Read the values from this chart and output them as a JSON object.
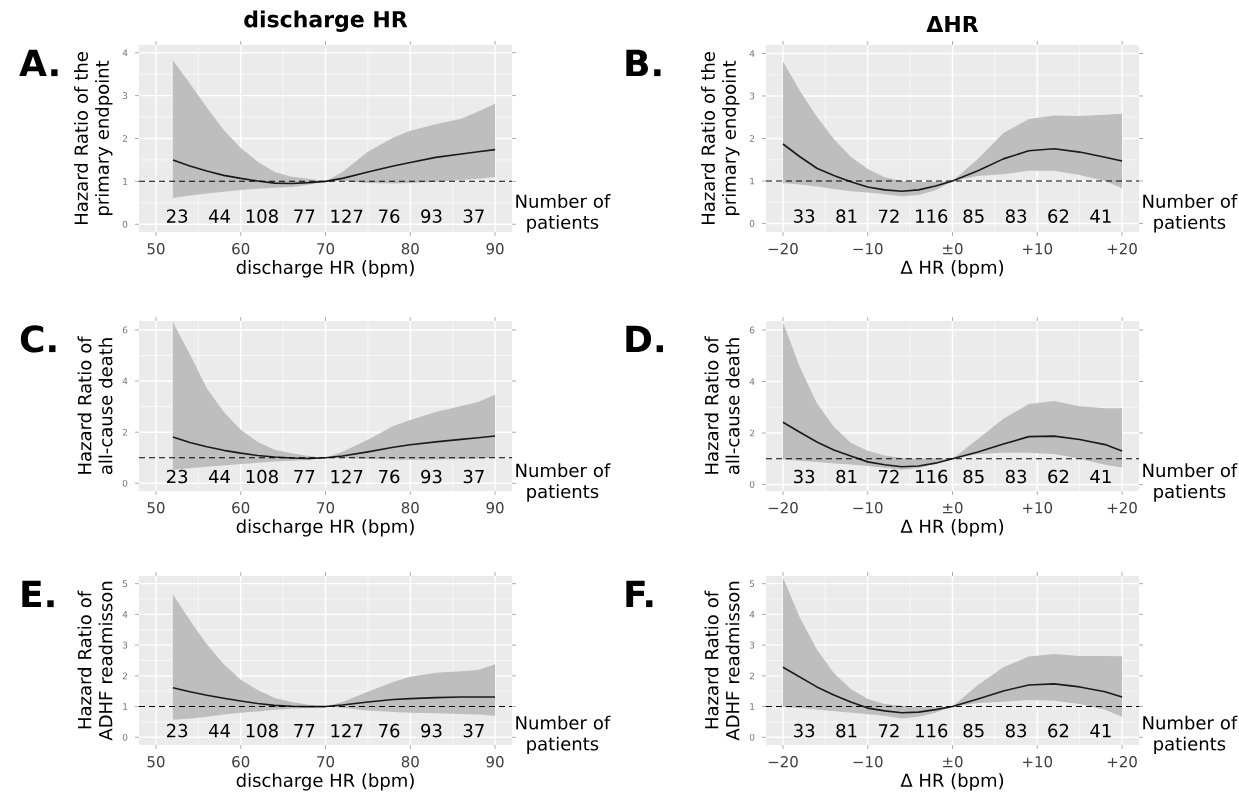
{
  "chart_data": [
    {
      "type": "line",
      "title": "discharge HR",
      "xlabel": "discharge HR (bpm)",
      "ylabel": "Hazard Ratio of the primary endpoint",
      "xlim": [
        48,
        92
      ],
      "ylim": [
        -0.18,
        4.18
      ],
      "xticks": [
        50,
        60,
        70,
        80,
        90
      ],
      "yticks": [
        0,
        1,
        2,
        3,
        4
      ],
      "grid": true,
      "marker": "none",
      "series": [
        {
          "color": "#1a1a1a",
          "x": [
            52,
            54,
            56,
            58,
            60,
            62,
            64,
            66,
            68,
            70,
            72,
            75,
            78,
            80,
            83,
            86,
            88,
            90
          ],
          "values": [
            1.5,
            1.36,
            1.24,
            1.14,
            1.07,
            1.01,
            0.96,
            0.95,
            0.97,
            1.0,
            1.07,
            1.22,
            1.36,
            1.44,
            1.56,
            1.64,
            1.69,
            1.74
          ],
          "upper": [
            3.82,
            3.28,
            2.72,
            2.2,
            1.78,
            1.46,
            1.22,
            1.11,
            1.06,
            1.0,
            1.22,
            1.69,
            2.02,
            2.18,
            2.33,
            2.46,
            2.63,
            2.81
          ],
          "lower": [
            0.61,
            0.67,
            0.72,
            0.76,
            0.8,
            0.83,
            0.85,
            0.87,
            0.92,
            1.0,
            1.01,
            0.96,
            0.95,
            0.96,
            0.99,
            1.03,
            1.06,
            1.1
          ]
        }
      ],
      "ref_lines": [
        {
          "axis": "y",
          "value": 1,
          "line_style": "dashed",
          "color": "#000000"
        }
      ],
      "annotations": [
        "A.",
        "Number of patients",
        "23",
        "44",
        "108",
        "77",
        "127",
        "76",
        "93",
        "37"
      ]
    },
    {
      "type": "line",
      "title": "ΔHR",
      "xlabel": "Δ HR (bpm)",
      "ylabel": "Hazard Ratio of the primary endpoint",
      "xlim": [
        -22,
        22
      ],
      "ylim": [
        -0.2,
        4.2
      ],
      "xticks": [
        {
          "value": -20,
          "label": "−20"
        },
        {
          "value": -10,
          "label": "−10"
        },
        {
          "value": 0,
          "label": "±0"
        },
        {
          "value": 10,
          "label": "+10"
        },
        {
          "value": 20,
          "label": "+20"
        }
      ],
      "yticks": [
        0,
        1,
        2,
        3,
        4
      ],
      "grid": true,
      "marker": "none",
      "series": [
        {
          "color": "#1a1a1a",
          "x": [
            -20,
            -18,
            -16,
            -14,
            -12,
            -10,
            -8,
            -6,
            -4,
            -2,
            0,
            3,
            6,
            9,
            12,
            15,
            18,
            20
          ],
          "values": [
            1.87,
            1.57,
            1.3,
            1.13,
            0.98,
            0.86,
            0.79,
            0.76,
            0.79,
            0.88,
            1.0,
            1.24,
            1.52,
            1.71,
            1.76,
            1.68,
            1.56,
            1.47
          ],
          "upper": [
            3.81,
            3.12,
            2.51,
            1.99,
            1.57,
            1.28,
            1.09,
            1.0,
            0.97,
            0.99,
            1.0,
            1.52,
            2.13,
            2.46,
            2.54,
            2.53,
            2.56,
            2.58
          ],
          "lower": [
            0.95,
            0.92,
            0.87,
            0.81,
            0.76,
            0.73,
            0.69,
            0.64,
            0.67,
            0.78,
            1.0,
            1.12,
            1.16,
            1.24,
            1.24,
            1.14,
            1.0,
            0.83
          ]
        }
      ],
      "ref_lines": [
        {
          "axis": "y",
          "value": 1,
          "line_style": "dashed",
          "color": "#000000"
        }
      ],
      "annotations": [
        "B.",
        "Number of patients",
        "33",
        "81",
        "72",
        "116",
        "85",
        "83",
        "62",
        "41"
      ]
    },
    {
      "type": "line",
      "xlabel": "discharge HR (bpm)",
      "ylabel": "Hazard Ratio of all-cause death",
      "xlim": [
        48,
        92
      ],
      "ylim": [
        -0.3,
        6.35
      ],
      "xticks": [
        50,
        60,
        70,
        80,
        90
      ],
      "yticks": [
        0,
        2,
        4,
        6
      ],
      "grid": true,
      "marker": "none",
      "series": [
        {
          "color": "#1a1a1a",
          "x": [
            52,
            54,
            56,
            58,
            60,
            62,
            64,
            66,
            68,
            70,
            72,
            75,
            78,
            80,
            83,
            86,
            88,
            90
          ],
          "values": [
            1.81,
            1.6,
            1.43,
            1.29,
            1.18,
            1.09,
            1.03,
            0.99,
            0.97,
            1.0,
            1.07,
            1.23,
            1.41,
            1.51,
            1.62,
            1.72,
            1.78,
            1.85
          ],
          "upper": [
            6.3,
            5.05,
            3.72,
            2.79,
            2.1,
            1.62,
            1.31,
            1.18,
            1.07,
            1.0,
            1.23,
            1.7,
            2.24,
            2.48,
            2.79,
            3.02,
            3.18,
            3.46
          ],
          "lower": [
            0.53,
            0.59,
            0.65,
            0.7,
            0.76,
            0.8,
            0.85,
            0.88,
            0.91,
            1.0,
            0.99,
            0.95,
            0.93,
            0.92,
            0.93,
            0.95,
            0.97,
            1.0
          ]
        }
      ],
      "ref_lines": [
        {
          "axis": "y",
          "value": 1,
          "line_style": "dashed",
          "color": "#000000"
        }
      ],
      "annotations": [
        "C.",
        "Number of patients",
        "23",
        "44",
        "108",
        "77",
        "127",
        "76",
        "93",
        "37"
      ]
    },
    {
      "type": "line",
      "xlabel": "Δ HR (bpm)",
      "ylabel": "Hazard Ratio of all-cause death",
      "xlim": [
        -22,
        22
      ],
      "ylim": [
        -0.25,
        6.35
      ],
      "xticks": [
        {
          "value": -20,
          "label": "−20"
        },
        {
          "value": -10,
          "label": "−10"
        },
        {
          "value": 0,
          "label": "±0"
        },
        {
          "value": 10,
          "label": "+10"
        },
        {
          "value": 20,
          "label": "+20"
        }
      ],
      "yticks": [
        0,
        2,
        4,
        6
      ],
      "grid": true,
      "marker": "none",
      "series": [
        {
          "color": "#1a1a1a",
          "x": [
            -20,
            -18,
            -16,
            -14,
            -12,
            -10,
            -8,
            -6,
            -4,
            -2,
            0,
            3,
            6,
            9,
            12,
            15,
            18,
            20
          ],
          "values": [
            2.42,
            2.03,
            1.65,
            1.34,
            1.11,
            0.88,
            0.77,
            0.69,
            0.72,
            0.83,
            1.0,
            1.26,
            1.57,
            1.86,
            1.88,
            1.75,
            1.55,
            1.3
          ],
          "upper": [
            6.3,
            4.55,
            3.16,
            2.24,
            1.62,
            1.31,
            1.13,
            1.03,
            1.0,
            1.02,
            1.0,
            1.77,
            2.55,
            3.13,
            3.24,
            3.04,
            2.96,
            2.96
          ],
          "lower": [
            0.97,
            0.92,
            0.88,
            0.82,
            0.78,
            0.72,
            0.65,
            0.57,
            0.63,
            0.82,
            1.0,
            1.19,
            1.23,
            1.23,
            1.19,
            1.0,
            0.77,
            0.66
          ]
        }
      ],
      "ref_lines": [
        {
          "axis": "y",
          "value": 1,
          "line_style": "dashed",
          "color": "#000000"
        }
      ],
      "annotations": [
        "D.",
        "Number of patients",
        "33",
        "81",
        "72",
        "116",
        "85",
        "83",
        "62",
        "41"
      ]
    },
    {
      "type": "line",
      "xlabel": "discharge HR (bpm)",
      "ylabel": "Hazard Ratio of ADHF readmisson",
      "xlim": [
        48,
        92
      ],
      "ylim": [
        -0.25,
        5.25
      ],
      "xticks": [
        50,
        60,
        70,
        80,
        90
      ],
      "yticks": [
        0,
        1,
        2,
        3,
        4,
        5
      ],
      "grid": true,
      "marker": "none",
      "series": [
        {
          "color": "#1a1a1a",
          "x": [
            52,
            54,
            56,
            58,
            60,
            62,
            64,
            66,
            68,
            70,
            72,
            75,
            78,
            80,
            83,
            86,
            88,
            90
          ],
          "values": [
            1.61,
            1.48,
            1.37,
            1.27,
            1.18,
            1.1,
            1.04,
            1.01,
            1.0,
            1.0,
            1.05,
            1.15,
            1.23,
            1.26,
            1.29,
            1.31,
            1.31,
            1.31
          ],
          "upper": [
            4.65,
            3.81,
            3.03,
            2.38,
            1.87,
            1.54,
            1.28,
            1.15,
            1.06,
            1.0,
            1.15,
            1.48,
            1.8,
            1.97,
            2.1,
            2.15,
            2.19,
            2.38
          ],
          "lower": [
            0.57,
            0.61,
            0.67,
            0.74,
            0.8,
            0.84,
            0.9,
            0.93,
            0.96,
            1.0,
            0.96,
            0.87,
            0.82,
            0.8,
            0.78,
            0.76,
            0.74,
            0.7
          ]
        }
      ],
      "ref_lines": [
        {
          "axis": "y",
          "value": 1,
          "line_style": "dashed",
          "color": "#000000"
        }
      ],
      "annotations": [
        "E.",
        "Number of patients",
        "23",
        "44",
        "108",
        "77",
        "127",
        "76",
        "93",
        "37"
      ]
    },
    {
      "type": "line",
      "xlabel": "Δ HR (bpm)",
      "ylabel": "Hazard Ratio of ADHF readmisson",
      "xlim": [
        -22,
        22
      ],
      "ylim": [
        -0.25,
        5.25
      ],
      "xticks": [
        {
          "value": -20,
          "label": "−20"
        },
        {
          "value": -10,
          "label": "−10"
        },
        {
          "value": 0,
          "label": "±0"
        },
        {
          "value": 10,
          "label": "+10"
        },
        {
          "value": 20,
          "label": "+20"
        }
      ],
      "yticks": [
        0,
        1,
        2,
        3,
        4,
        5
      ],
      "grid": true,
      "marker": "none",
      "series": [
        {
          "color": "#1a1a1a",
          "x": [
            -20,
            -18,
            -16,
            -14,
            -12,
            -10,
            -8,
            -6,
            -4,
            -2,
            0,
            3,
            6,
            9,
            12,
            15,
            18,
            20
          ],
          "values": [
            2.28,
            1.96,
            1.64,
            1.38,
            1.15,
            0.95,
            0.86,
            0.8,
            0.82,
            0.9,
            1.0,
            1.25,
            1.51,
            1.7,
            1.74,
            1.64,
            1.48,
            1.31
          ],
          "upper": [
            5.2,
            3.89,
            2.86,
            2.09,
            1.57,
            1.25,
            1.08,
            1.03,
            0.99,
            0.99,
            1.0,
            1.7,
            2.28,
            2.63,
            2.71,
            2.65,
            2.65,
            2.64
          ],
          "lower": [
            0.99,
            0.95,
            0.9,
            0.85,
            0.8,
            0.75,
            0.7,
            0.61,
            0.67,
            0.8,
            1.0,
            1.12,
            1.16,
            1.21,
            1.19,
            1.08,
            0.9,
            0.67
          ]
        }
      ],
      "ref_lines": [
        {
          "axis": "y",
          "value": 1,
          "line_style": "dashed",
          "color": "#000000"
        }
      ],
      "annotations": [
        "F.",
        "Number of patients",
        "33",
        "81",
        "72",
        "116",
        "85",
        "83",
        "62",
        "41"
      ]
    }
  ]
}
